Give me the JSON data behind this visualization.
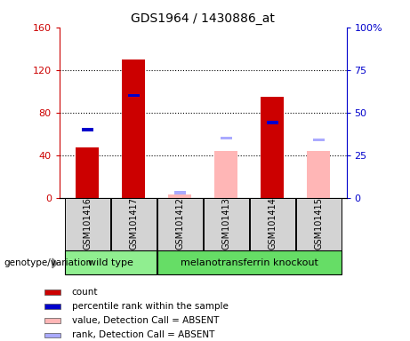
{
  "title": "GDS1964 / 1430886_at",
  "samples": [
    "GSM101416",
    "GSM101417",
    "GSM101412",
    "GSM101413",
    "GSM101414",
    "GSM101415"
  ],
  "count_values": [
    47,
    130,
    null,
    null,
    95,
    null
  ],
  "percentile_rank": [
    40,
    60,
    null,
    null,
    44,
    null
  ],
  "absent_value": [
    null,
    null,
    3,
    44,
    null,
    44
  ],
  "absent_rank": [
    null,
    null,
    3,
    35,
    null,
    34
  ],
  "group_labels": [
    "wild type",
    "melanotransferrin knockout"
  ],
  "wt_indices": [
    0,
    1
  ],
  "ko_indices": [
    2,
    3,
    4,
    5
  ],
  "bar_width": 0.5,
  "ylim_left": [
    0,
    160
  ],
  "ylim_right": [
    0,
    100
  ],
  "yticks_left": [
    0,
    40,
    80,
    120,
    160
  ],
  "yticks_right": [
    0,
    25,
    50,
    75,
    100
  ],
  "yticklabels_right": [
    "0",
    "25",
    "50",
    "75",
    "100%"
  ],
  "left_axis_color": "#cc0000",
  "right_axis_color": "#0000cc",
  "count_color": "#cc0000",
  "rank_color": "#0000cc",
  "absent_value_color": "#ffb6b6",
  "absent_rank_color": "#aaaaff",
  "bg_color": "#d3d3d3",
  "plot_bg_color": "#ffffff",
  "wt_color": "#90EE90",
  "ko_color": "#66DD66",
  "legend_items": [
    [
      "#cc0000",
      "count"
    ],
    [
      "#0000cc",
      "percentile rank within the sample"
    ],
    [
      "#ffb6b6",
      "value, Detection Call = ABSENT"
    ],
    [
      "#aaaaff",
      "rank, Detection Call = ABSENT"
    ]
  ]
}
